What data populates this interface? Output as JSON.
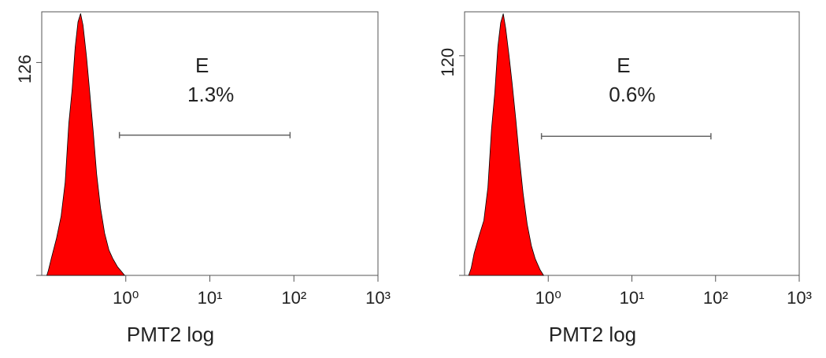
{
  "chart_data": [
    {
      "type": "area",
      "x_label": "PMT2 log",
      "log_x": true,
      "color": "#ff0000",
      "edge_color": "#000000",
      "xlim": [
        0.1,
        1000
      ],
      "xticks": [
        {
          "value": 1,
          "label": "10⁰"
        },
        {
          "value": 10,
          "label": "10¹"
        },
        {
          "value": 100,
          "label": "10²"
        },
        {
          "value": 1000,
          "label": "10³"
        }
      ],
      "ylim": [
        0,
        156
      ],
      "yticks": [
        126
      ],
      "x": [
        0.115,
        0.12,
        0.13,
        0.15,
        0.17,
        0.19,
        0.21,
        0.23,
        0.25,
        0.27,
        0.29,
        0.31,
        0.34,
        0.37,
        0.41,
        0.45,
        0.5,
        0.56,
        0.63,
        0.7,
        0.8,
        0.9,
        0.97
      ],
      "values": [
        0,
        3,
        10,
        22,
        35,
        55,
        90,
        110,
        135,
        150,
        155,
        148,
        130,
        110,
        85,
        60,
        40,
        25,
        15,
        10,
        5,
        2,
        0
      ],
      "gate": {
        "name": "E",
        "percent": "1.3%",
        "range": [
          0.84,
          90
        ],
        "level": 83
      }
    },
    {
      "type": "area",
      "x_label": "PMT2 log",
      "log_x": true,
      "color": "#ff0000",
      "edge_color": "#000000",
      "xlim": [
        0.1,
        1000
      ],
      "xticks": [
        {
          "value": 1,
          "label": "10⁰"
        },
        {
          "value": 10,
          "label": "10¹"
        },
        {
          "value": 100,
          "label": "10²"
        },
        {
          "value": 1000,
          "label": "10³"
        }
      ],
      "ylim": [
        0,
        144
      ],
      "yticks": [
        120
      ],
      "x": [
        0.112,
        0.12,
        0.13,
        0.15,
        0.17,
        0.19,
        0.21,
        0.23,
        0.25,
        0.27,
        0.29,
        0.31,
        0.34,
        0.37,
        0.41,
        0.45,
        0.5,
        0.56,
        0.63,
        0.7,
        0.8,
        0.88
      ],
      "values": [
        0,
        4,
        12,
        22,
        30,
        48,
        80,
        100,
        125,
        138,
        143,
        135,
        120,
        105,
        85,
        65,
        45,
        28,
        16,
        9,
        3,
        0
      ],
      "gate": {
        "name": "E",
        "percent": "0.6%",
        "range": [
          0.83,
          88
        ],
        "level": 76
      }
    }
  ]
}
